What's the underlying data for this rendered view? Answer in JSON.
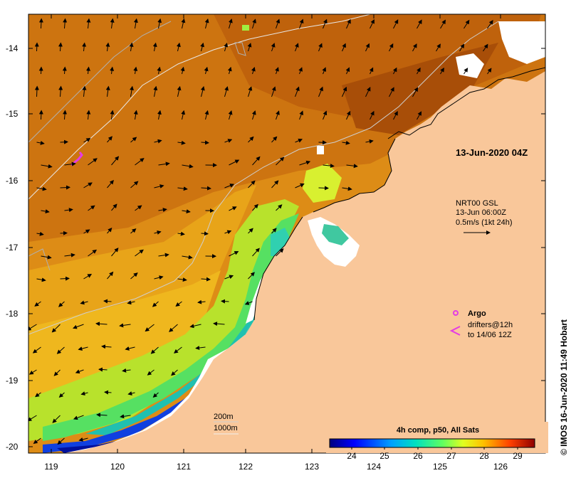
{
  "map": {
    "timestamp": "13-Jun-2020 04Z",
    "x_ticks": [
      "119",
      "120",
      "121",
      "122",
      "123",
      "124",
      "125",
      "126"
    ],
    "y_ticks": [
      "-14",
      "-15",
      "-16",
      "-17",
      "-18",
      "-19",
      "-20"
    ]
  },
  "currents": {
    "product": "NRT00 GSL",
    "time": "13-Jun 06:00Z",
    "scale": "0.5m/s (1kt 24h)"
  },
  "legend": {
    "argo_label": "Argo",
    "drifters_label": "drifters@12h",
    "drifters_until": "to 14/06 12Z"
  },
  "isobaths": {
    "shallow": "200m",
    "deep": "1000m"
  },
  "colorbar": {
    "title": "4h comp, p50, All Sats",
    "ticks": [
      "24",
      "25",
      "26",
      "27",
      "28",
      "29"
    ]
  },
  "credit": "© IMOS 16-Jun-2020 11:49 Hobart",
  "colors": {
    "land": "#f9c79a",
    "warm": "#c76a0e",
    "argo": "#e43ce4"
  }
}
